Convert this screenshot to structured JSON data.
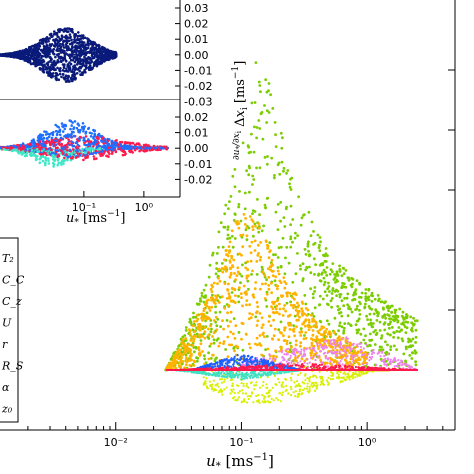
{
  "chart_data": [
    {
      "id": "main",
      "type": "scatter",
      "xlabel": "u* [ms⁻¹]",
      "xscale": "log",
      "xlim": [
        0.001,
        5
      ],
      "x_tick_labels": [
        "10⁻²",
        "10⁻¹",
        "10⁰"
      ],
      "x_tick_values": [
        0.01,
        0.1,
        1
      ],
      "legend": {
        "placement": "left",
        "entries": [
          "T₂",
          "C_C",
          "C_z",
          "U",
          "r",
          "R_S",
          "α",
          "z₀"
        ]
      },
      "series": [
        {
          "color": "#7ccd00",
          "x_range": [
            0.025,
            2.5
          ],
          "envelope": [
            [
              0.025,
              0.0
            ],
            [
              0.05,
              0.05
            ],
            [
              0.1,
              0.14
            ],
            [
              0.13,
              0.19
            ],
            [
              0.16,
              0.18
            ],
            [
              0.25,
              0.12
            ],
            [
              0.5,
              0.07
            ],
            [
              1.0,
              0.05
            ],
            [
              2.5,
              0.03
            ]
          ]
        },
        {
          "color": "#ffb300",
          "x_range": [
            0.025,
            1.5
          ],
          "envelope": [
            [
              0.025,
              0.0
            ],
            [
              0.05,
              0.04
            ],
            [
              0.09,
              0.09
            ],
            [
              0.12,
              0.1
            ],
            [
              0.2,
              0.06
            ],
            [
              0.4,
              0.03
            ],
            [
              1.0,
              0.01
            ]
          ]
        },
        {
          "color": "#d8f000",
          "x_range": [
            0.05,
            1.2
          ],
          "envelope": [
            [
              0.05,
              -0.01
            ],
            [
              0.1,
              -0.02
            ],
            [
              0.2,
              -0.02
            ],
            [
              0.5,
              -0.01
            ],
            [
              1.2,
              0.0
            ]
          ]
        },
        {
          "color": "#ee82ee",
          "x_range": [
            0.1,
            2.5
          ],
          "envelope": [
            [
              0.1,
              0.005
            ],
            [
              0.3,
              0.015
            ],
            [
              0.7,
              0.02
            ],
            [
              1.5,
              0.01
            ],
            [
              2.5,
              0.0
            ]
          ]
        },
        {
          "color": "#1e5fff",
          "x_range": [
            0.04,
            0.3
          ],
          "envelope": [
            [
              0.04,
              0.0
            ],
            [
              0.1,
              0.01
            ],
            [
              0.3,
              0.0
            ]
          ]
        },
        {
          "color": "#ff1a4b",
          "x_range": [
            0.03,
            2.5
          ],
          "envelope": [
            [
              0.03,
              0.0
            ],
            [
              0.3,
              0.004
            ],
            [
              2.5,
              0.0
            ]
          ]
        },
        {
          "color": "#40e0c0",
          "x_range": [
            0.03,
            0.3
          ],
          "envelope": [
            [
              0.03,
              0.0
            ],
            [
              0.1,
              -0.006
            ],
            [
              0.3,
              0.0
            ]
          ]
        }
      ]
    },
    {
      "id": "inset-top",
      "type": "scatter",
      "xscale": "log",
      "ylim": [
        -0.03,
        0.03
      ],
      "y_tick_labels": [
        "0.03",
        "0.02",
        "0.01",
        "0.00",
        "-0.01",
        "-0.02",
        "-0.03"
      ],
      "y_tick_values": [
        0.03,
        0.02,
        0.01,
        0.0,
        -0.01,
        -0.02,
        -0.03
      ],
      "series": [
        {
          "color": "#0a1a7a"
        }
      ]
    },
    {
      "id": "inset-bottom",
      "type": "scatter",
      "xscale": "log",
      "xlabel": "u* [ms⁻¹]",
      "ylabel": "∂u*/∂xᵢ Δxᵢ [ms⁻¹]",
      "x_tick_labels": [
        "10⁻¹",
        "10⁰"
      ],
      "x_tick_values": [
        0.1,
        1
      ],
      "ylim": [
        -0.03,
        0.03
      ],
      "y_tick_labels": [
        "0.02",
        "0.01",
        "0.00",
        "-0.01",
        "-0.02"
      ],
      "y_tick_values": [
        0.02,
        0.01,
        0.0,
        -0.01,
        -0.02
      ],
      "series": [
        {
          "color": "#1e6fff"
        },
        {
          "color": "#ff1a4b"
        },
        {
          "color": "#40e8c8"
        }
      ]
    }
  ]
}
